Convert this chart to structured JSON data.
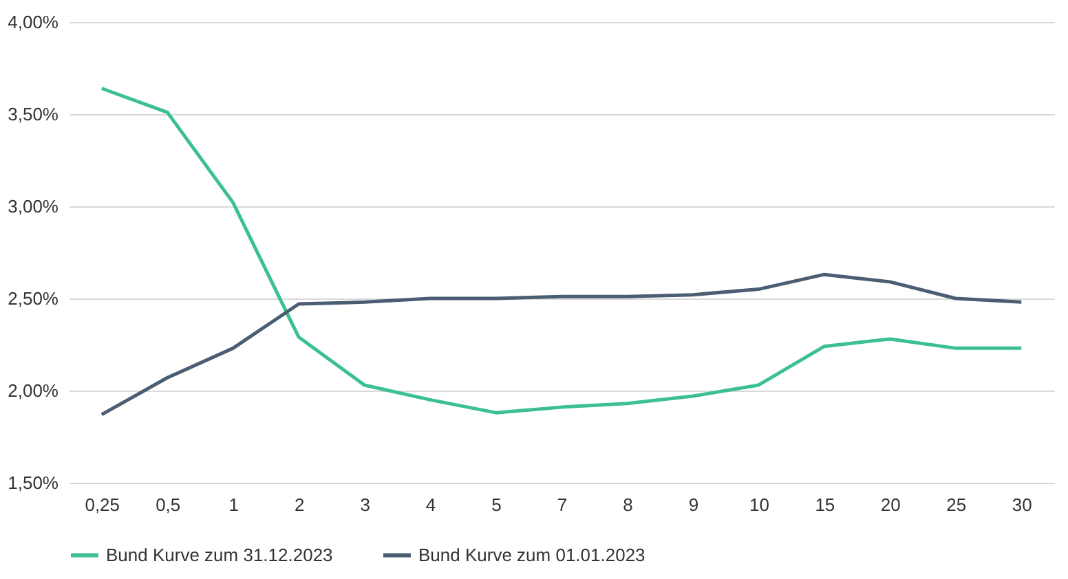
{
  "chart_data": {
    "type": "line",
    "categories": [
      "0,25",
      "0,5",
      "1",
      "2",
      "3",
      "4",
      "5",
      "7",
      "8",
      "9",
      "10",
      "15",
      "20",
      "25",
      "30"
    ],
    "series": [
      {
        "name": "Bund Kurve zum 31.12.2023",
        "color": "#3cc08f",
        "values": [
          3.64,
          3.51,
          3.02,
          2.29,
          2.03,
          1.95,
          1.88,
          1.91,
          1.93,
          1.97,
          2.03,
          2.24,
          2.28,
          2.23,
          2.23
        ]
      },
      {
        "name": "Bund Kurve zum 01.01.2023",
        "color": "#4b5d72",
        "values": [
          1.87,
          2.07,
          2.23,
          2.47,
          2.48,
          2.5,
          2.5,
          2.51,
          2.51,
          2.52,
          2.55,
          2.63,
          2.59,
          2.5,
          2.48
        ]
      }
    ],
    "ylim": [
      1.5,
      4.0
    ],
    "yticks": [
      {
        "value": 1.5,
        "label": "1,50%"
      },
      {
        "value": 2.0,
        "label": "2,00%"
      },
      {
        "value": 2.5,
        "label": "2,50%"
      },
      {
        "value": 3.0,
        "label": "3,00%"
      },
      {
        "value": 3.5,
        "label": "3,50%"
      },
      {
        "value": 4.0,
        "label": "4,00%"
      }
    ],
    "grid": "y",
    "legend": "bottom",
    "marker": "none",
    "line_style": "solid"
  }
}
